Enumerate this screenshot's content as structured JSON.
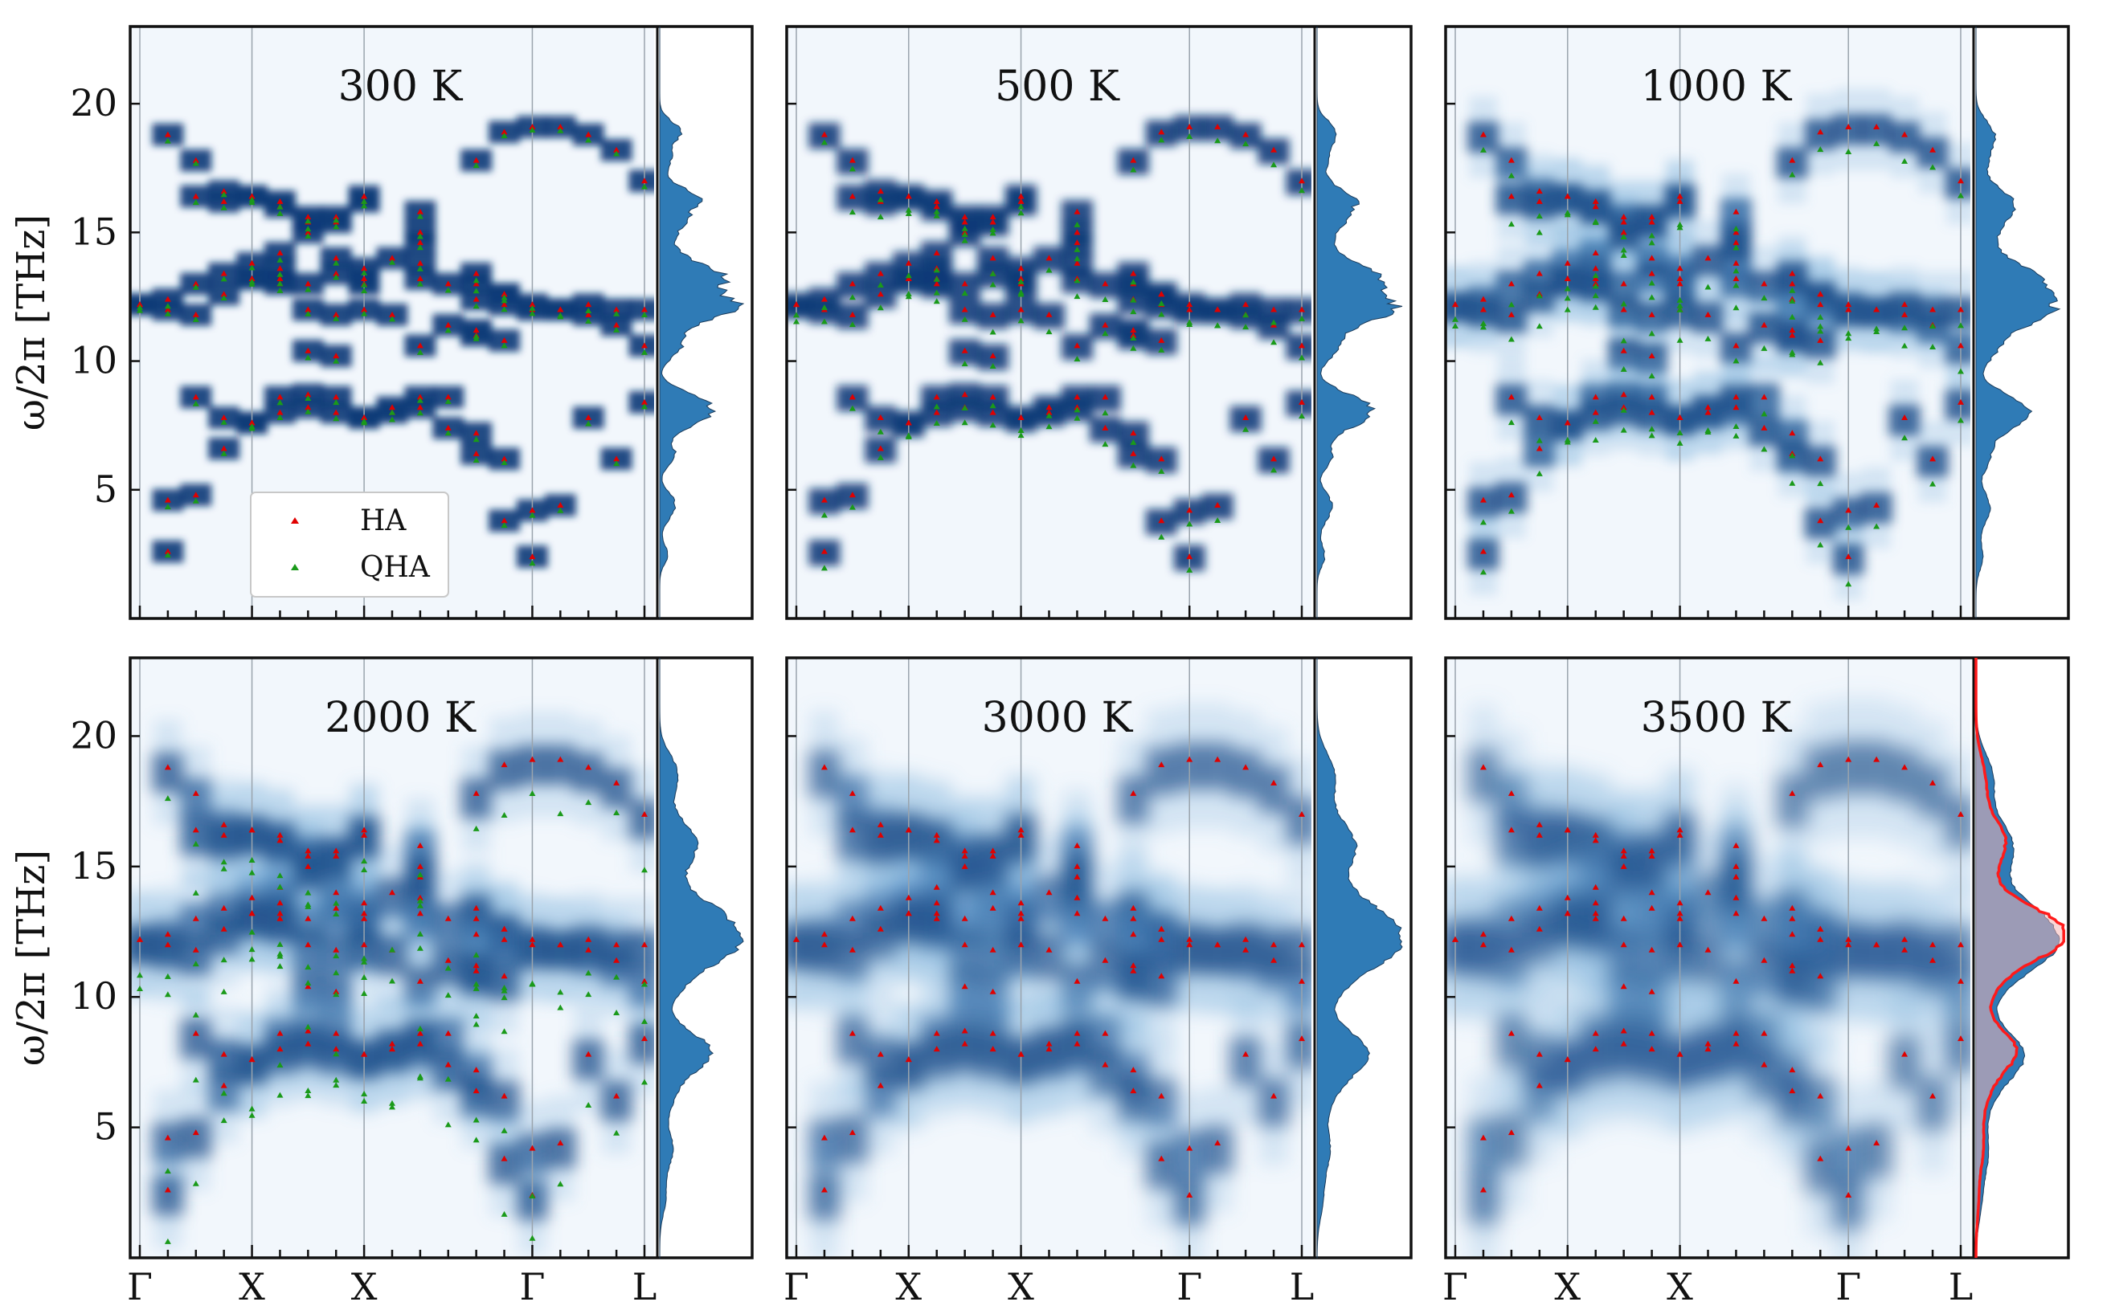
{
  "chart_data": {
    "type": "heatmap",
    "title": "",
    "ylabel": "ω/2π [THz]",
    "ylim": [
      0,
      23
    ],
    "yticks": [
      5,
      10,
      15,
      20
    ],
    "path_labels": [
      "Γ",
      "X",
      "X",
      "Γ",
      "L"
    ],
    "path_positions": [
      0,
      0.2,
      0.4,
      0.7,
      0.9
    ],
    "legend": [
      "HA",
      "QHA"
    ],
    "colors": {
      "ha": "#e00000",
      "qha": "#1a9a1a",
      "dos": "#2f7bb6",
      "band": "#0b3a78",
      "bg": "#f2f7fc",
      "anharmonic_dos": "#ff1a1a"
    },
    "panels": [
      {
        "temperature": "300 K",
        "qha_offset": -0.2,
        "blur": 0.25,
        "shift": 0.0
      },
      {
        "temperature": "500 K",
        "qha_offset": -0.5,
        "blur": 0.35,
        "shift": -0.05
      },
      {
        "temperature": "1000 K",
        "qha_offset": -0.9,
        "blur": 0.5,
        "shift": -0.1
      },
      {
        "temperature": "2000 K",
        "qha_offset": -1.8,
        "blur": 0.75,
        "shift": -0.2
      },
      {
        "temperature": "3000 K",
        "qha_offset": null,
        "blur": 0.95,
        "shift": -0.25
      },
      {
        "temperature": "3500 K",
        "qha_offset": null,
        "blur": 1.1,
        "shift": -0.3
      }
    ],
    "ha_branches": [
      {
        "x": [
          0,
          0.05,
          0.1,
          0.15,
          0.2,
          0.25,
          0.3,
          0.35,
          0.4,
          0.5,
          0.6,
          0.65,
          0.7,
          0.75,
          0.8,
          0.85,
          0.9
        ],
        "y": [
          12.2,
          12.4,
          13.0,
          13.4,
          13.8,
          13.2,
          13.0,
          13.4,
          13.6,
          13.2,
          13.0,
          12.6,
          12.2,
          12.0,
          11.8,
          11.4,
          10.6
        ]
      },
      {
        "x": [
          0,
          0.05,
          0.1,
          0.15,
          0.2,
          0.25,
          0.3,
          0.35,
          0.4,
          0.5,
          0.6,
          0.65,
          0.7,
          0.75,
          0.8,
          0.85,
          0.9
        ],
        "y": [
          12.2,
          12.0,
          11.8,
          12.6,
          13.2,
          14.2,
          15.4,
          14.0,
          13.2,
          13.8,
          12.4,
          12.2,
          12.0,
          12.0,
          12.2,
          12.0,
          12.0
        ]
      },
      {
        "x": [
          0.05,
          0.1,
          0.15,
          0.2,
          0.25,
          0.3,
          0.35,
          0.4,
          0.5,
          0.6,
          0.65,
          0.7,
          0.75,
          0.8,
          0.85,
          0.9
        ],
        "y": [
          18.8,
          17.8,
          16.6,
          16.4,
          16.2,
          15.6,
          15.4,
          16.2,
          15.8,
          17.8,
          18.9,
          19.1,
          19.1,
          18.8,
          18.2,
          17.0
        ]
      },
      {
        "x": [
          0.1,
          0.15,
          0.2,
          0.25,
          0.3,
          0.35,
          0.4,
          0.5,
          0.6,
          0.65
        ],
        "y": [
          16.4,
          16.2,
          16.4,
          16.0,
          15.0,
          15.6,
          16.4,
          15.0,
          13.4,
          12.6
        ]
      },
      {
        "x": [
          0.2,
          0.25,
          0.3,
          0.35,
          0.4,
          0.45,
          0.5,
          0.55,
          0.6
        ],
        "y": [
          13.2,
          13.6,
          12.0,
          11.8,
          13.0,
          14.0,
          14.6,
          13.0,
          11.2
        ]
      },
      {
        "x": [
          0.25,
          0.3,
          0.35,
          0.4,
          0.45,
          0.5,
          0.55,
          0.6,
          0.65
        ],
        "y": [
          13.0,
          10.4,
          10.2,
          12.0,
          11.8,
          10.6,
          11.4,
          11.0,
          10.8
        ]
      },
      {
        "x": [
          0.05,
          0.1,
          0.15,
          0.2,
          0.25,
          0.3,
          0.35,
          0.4,
          0.45,
          0.5,
          0.55,
          0.6,
          0.65,
          0.7
        ],
        "y": [
          4.6,
          4.8,
          6.6,
          7.6,
          8.6,
          8.7,
          8.6,
          7.8,
          8.0,
          8.2,
          8.6,
          7.2,
          6.2,
          4.2
        ]
      },
      {
        "x": [
          0.05,
          0.1,
          0.15,
          0.2,
          0.25,
          0.3,
          0.35,
          0.4,
          0.45,
          0.5,
          0.55,
          0.6,
          0.65,
          0.7,
          0.75,
          0.8,
          0.85,
          0.9
        ],
        "y": [
          2.6,
          8.6,
          7.8,
          7.6,
          8.0,
          8.2,
          8.0,
          7.8,
          8.2,
          8.6,
          7.4,
          6.4,
          3.8,
          2.4,
          4.4,
          7.8,
          6.2,
          8.4
        ]
      }
    ]
  }
}
